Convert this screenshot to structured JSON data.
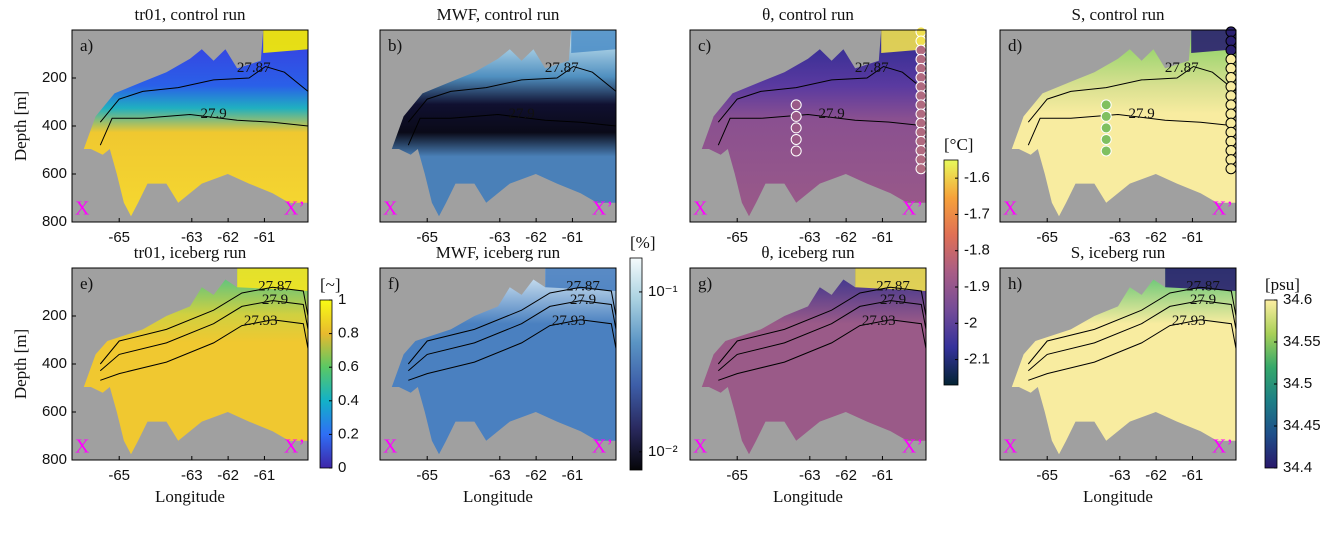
{
  "chart_data": [
    {
      "type": "heatmap",
      "title": "tr01, control run",
      "panel_label": "a)",
      "section_start": "X",
      "section_end": "X’",
      "ylabel": "Depth [m]",
      "xlim": [
        -66.3,
        -59.8
      ],
      "xticks": [
        -65,
        -63,
        -62,
        -61
      ],
      "ylim": [
        800,
        0
      ],
      "yticks": [
        200,
        400,
        600,
        800
      ],
      "contours": [
        27.87,
        27.9
      ],
      "colorbar": {
        "label": "[~]",
        "lim": [
          0,
          1
        ],
        "ticks": [
          0,
          0.2,
          0.4,
          0.6,
          0.8,
          1
        ],
        "colors": [
          "#3e26a8",
          "#2f6ef5",
          "#12b1c8",
          "#5ac864",
          "#e8ba2e",
          "#f9fb14"
        ]
      }
    },
    {
      "type": "heatmap",
      "title": "MWF, control run",
      "panel_label": "b)",
      "section_start": "X",
      "section_end": "X’",
      "xlim": [
        -66.3,
        -59.8
      ],
      "xticks": [
        -65,
        -63,
        -62,
        -61
      ],
      "contours": [
        27.87,
        27.9
      ],
      "colorbar": {
        "label": "[%]",
        "log": true,
        "lim": [
          0.0077,
          0.163
        ],
        "ticks": [
          {
            "value": 0.1,
            "label": "10⁻¹"
          },
          {
            "value": 0.01,
            "label": "10⁻²"
          }
        ],
        "colors": [
          "#050508",
          "#2a2a60",
          "#3d5ea8",
          "#5a94c4",
          "#a8d0e0",
          "#f4fbfc"
        ]
      }
    },
    {
      "type": "heatmap",
      "title": "θ, control run",
      "panel_label": "c)",
      "section_start": "X",
      "section_end": "X’",
      "xlim": [
        -66.3,
        -59.8
      ],
      "xticks": [
        -65,
        -63,
        -62,
        -61
      ],
      "contours": [
        27.87,
        27.9
      ],
      "colorbar": {
        "label": "[°C]",
        "lim": [
          -2.17,
          -1.55
        ],
        "ticks": [
          -1.6,
          -1.7,
          -1.8,
          -1.9,
          -2,
          -2.1
        ],
        "colors": [
          "#032333",
          "#35329b",
          "#744c98",
          "#a85d86",
          "#e07055",
          "#f6a23a",
          "#e8fa5b"
        ]
      }
    },
    {
      "type": "heatmap",
      "title": "S, control run",
      "panel_label": "d)",
      "section_start": "X",
      "section_end": "X’",
      "xlim": [
        -66.3,
        -59.8
      ],
      "xticks": [
        -65,
        -63,
        -62,
        -61
      ],
      "contours": [
        27.87,
        27.9
      ],
      "colorbar": {
        "label": "[psu]",
        "lim": [
          34.4,
          34.6
        ],
        "ticks": [
          34.4,
          34.45,
          34.5,
          34.55,
          34.6
        ],
        "colors": [
          "#29186b",
          "#1f4f8a",
          "#1d7f86",
          "#35a86a",
          "#a8d058",
          "#fdeea2"
        ]
      }
    },
    {
      "type": "heatmap",
      "title": "tr01, iceberg run",
      "panel_label": "e)",
      "section_start": "X",
      "section_end": "X’",
      "ylabel": "Depth [m]",
      "xlabel": "Longitude",
      "xlim": [
        -66.3,
        -59.8
      ],
      "xticks": [
        -65,
        -63,
        -62,
        -61
      ],
      "ylim": [
        800,
        0
      ],
      "yticks": [
        200,
        400,
        600,
        800
      ],
      "contours": [
        27.87,
        27.9,
        27.93
      ]
    },
    {
      "type": "heatmap",
      "title": "MWF, iceberg run",
      "panel_label": "f)",
      "section_start": "X",
      "section_end": "X’",
      "xlabel": "Longitude",
      "xlim": [
        -66.3,
        -59.8
      ],
      "xticks": [
        -65,
        -63,
        -62,
        -61
      ],
      "contours": [
        27.87,
        27.9,
        27.93
      ]
    },
    {
      "type": "heatmap",
      "title": "θ, iceberg run",
      "panel_label": "g)",
      "section_start": "X",
      "section_end": "X’",
      "xlabel": "Longitude",
      "xlim": [
        -66.3,
        -59.8
      ],
      "xticks": [
        -65,
        -63,
        -62,
        -61
      ],
      "contours": [
        27.87,
        27.9,
        27.93
      ]
    },
    {
      "type": "heatmap",
      "title": "S, iceberg run",
      "panel_label": "h)",
      "section_start": "X",
      "section_end": "X’",
      "xlabel": "Longitude",
      "xlim": [
        -66.3,
        -59.8
      ],
      "xticks": [
        -65,
        -63,
        -62,
        -61
      ],
      "contours": [
        27.87,
        27.9,
        27.93
      ]
    }
  ]
}
